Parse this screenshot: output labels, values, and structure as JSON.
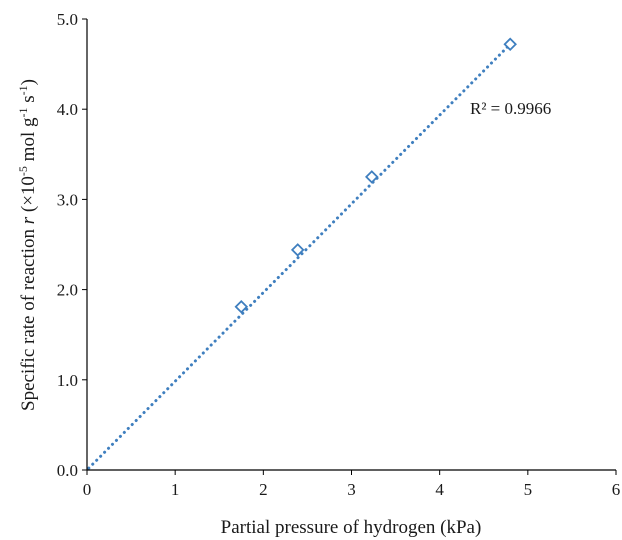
{
  "chart_data": {
    "type": "scatter",
    "xlabel": "Partial pressure of hydrogen (kPa)",
    "ylabel": {
      "prefix": "Specific rate of reaction ",
      "var": "r",
      "unit_open": " (×10",
      "exp1": "-5",
      "mid1": " mol g",
      "exp2": "-1",
      "mid2": " s",
      "exp3": "-1",
      "close": ")"
    },
    "xlim": [
      0,
      6
    ],
    "ylim": [
      0,
      5
    ],
    "x_ticks": [
      0,
      1,
      2,
      3,
      4,
      5,
      6
    ],
    "y_ticks": [
      0,
      1,
      2,
      3,
      4,
      5
    ],
    "x_tick_labels": [
      "0",
      "1",
      "2",
      "3",
      "4",
      "5",
      "6"
    ],
    "y_tick_labels": [
      "0.0",
      "1.0",
      "2.0",
      "3.0",
      "4.0",
      "5.0"
    ],
    "grid": false,
    "legend": "none",
    "marker": "diamond-open",
    "series": [
      {
        "x": [
          1.75,
          2.39,
          3.23,
          4.8
        ],
        "y": [
          1.81,
          2.44,
          3.25,
          4.72
        ]
      }
    ],
    "trendline": {
      "style": "dotted",
      "x": [
        0.02,
        4.82
      ],
      "y": [
        0.02,
        4.74
      ]
    },
    "annotation": "R² = 0.9966",
    "colors": {
      "series": "#3f7fbf",
      "axis": "#000000"
    }
  }
}
